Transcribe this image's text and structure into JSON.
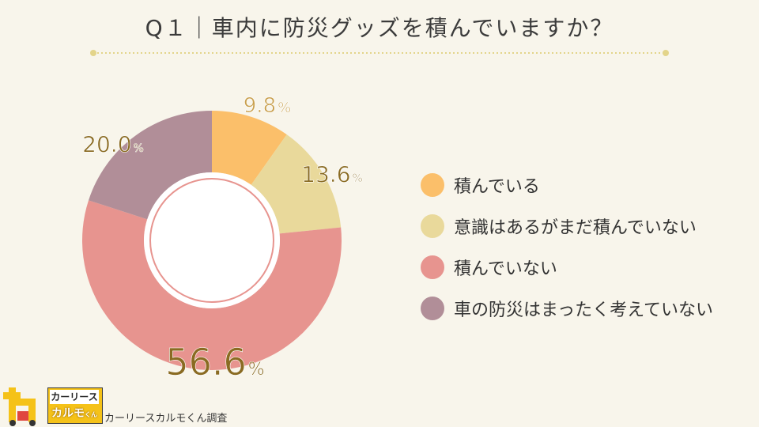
{
  "title": "Q１｜車内に防災グッズを積んでいますか？",
  "chart_data": {
    "type": "pie",
    "subtype": "donut",
    "categories": [
      "積んでいる",
      "意識はあるがまだ積んでいない",
      "積んでいない",
      "車の防災はまったく考えていない"
    ],
    "values": [
      9.8,
      13.6,
      56.6,
      20.0
    ],
    "value_labels": [
      "9.8",
      "13.6",
      "56.6",
      "20.0"
    ],
    "unit": "%",
    "colors": [
      "#fbbf6a",
      "#e9d99b",
      "#e7948f",
      "#b18e98"
    ],
    "legend_position": "right"
  },
  "footer": {
    "logo_top": "カーリース",
    "logo_main": "カルモ",
    "logo_kun": "くん",
    "source": "カーリースカルモくん調査"
  },
  "icons": {
    "logo_mark": "carmo-logo-icon"
  }
}
